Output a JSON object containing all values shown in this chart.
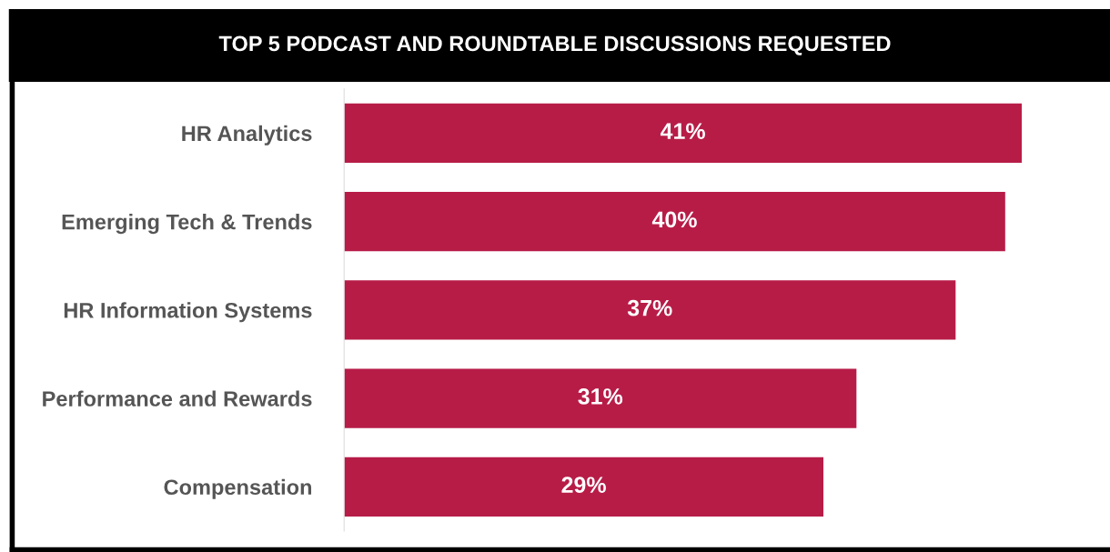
{
  "chart_data": {
    "type": "bar",
    "orientation": "horizontal",
    "title": "TOP 5 PODCAST AND ROUNDTABLE DISCUSSIONS REQUESTED",
    "categories": [
      "HR Analytics",
      "Emerging Tech & Trends",
      "HR Information Systems",
      "Performance and Rewards",
      "Compensation"
    ],
    "values": [
      41,
      40,
      37,
      31,
      29
    ],
    "value_labels": [
      "41%",
      "40%",
      "37%",
      "31%",
      "29%"
    ],
    "color": "#b71c47",
    "relative": false,
    "tick_labels": "y",
    "grid": false,
    "legend": false
  }
}
